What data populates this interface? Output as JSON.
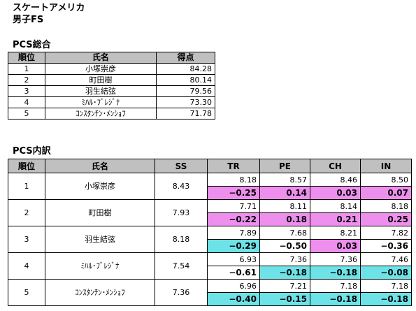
{
  "titles": {
    "event": "スケートアメリカ",
    "category": "男子FS",
    "pcs_total": "PCS総合",
    "pcs_detail": "PCS内訳"
  },
  "summary": {
    "headers": [
      "順位",
      "氏名",
      "得点"
    ],
    "rows": [
      {
        "rank": "1",
        "name": "小塚崇彦",
        "score": "84.28"
      },
      {
        "rank": "2",
        "name": "町田樹",
        "score": "80.14"
      },
      {
        "rank": "3",
        "name": "羽生結弦",
        "score": "79.56"
      },
      {
        "rank": "4",
        "name": "ﾐﾊﾙ･ﾌﾞﾚｼﾞﾅ",
        "score": "73.30"
      },
      {
        "rank": "5",
        "name": "ｺﾝｽﾀﾝﾁﾝ･ﾒﾝｼｮﾌ",
        "score": "71.78"
      }
    ]
  },
  "detail": {
    "headers": [
      "順位",
      "氏名",
      "SS",
      "TR",
      "PE",
      "CH",
      "IN"
    ],
    "rows": [
      {
        "rank": "1",
        "name": "小塚崇彦",
        "ss": "8.43",
        "vals": [
          "8.18",
          "8.57",
          "8.46",
          "8.50"
        ],
        "diffs": [
          "−0.25",
          "0.14",
          "0.03",
          "0.07"
        ]
      },
      {
        "rank": "2",
        "name": "町田樹",
        "ss": "7.93",
        "vals": [
          "7.71",
          "8.11",
          "8.14",
          "8.18"
        ],
        "diffs": [
          "−0.22",
          "0.18",
          "0.21",
          "0.25"
        ]
      },
      {
        "rank": "3",
        "name": "羽生結弦",
        "ss": "8.18",
        "vals": [
          "7.89",
          "7.68",
          "8.21",
          "7.82"
        ],
        "diffs": [
          "−0.29",
          "−0.50",
          "0.03",
          "−0.36"
        ]
      },
      {
        "rank": "4",
        "name": "ﾐﾊﾙ･ﾌﾞﾚｼﾞﾅ",
        "ss": "7.54",
        "vals": [
          "6.93",
          "7.36",
          "7.36",
          "7.46"
        ],
        "diffs": [
          "−0.61",
          "−0.18",
          "−0.18",
          "−0.08"
        ]
      },
      {
        "rank": "5",
        "name": "ｺﾝｽﾀﾝﾁﾝ･ﾒﾝｼｮﾌ",
        "ss": "7.36",
        "vals": [
          "6.96",
          "7.21",
          "7.18",
          "7.18"
        ],
        "diffs": [
          "−0.40",
          "−0.15",
          "−0.18",
          "−0.18"
        ]
      }
    ]
  },
  "colors": {
    "header_bg": "#c0c0c0",
    "positive_highlight": "#ee8fee",
    "negative_highlight": "#6de3e8"
  }
}
